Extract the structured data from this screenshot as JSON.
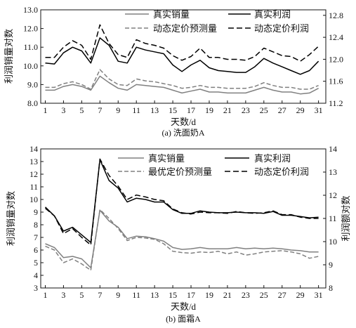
{
  "chart_data": [
    {
      "type": "line",
      "caption": "(a) 洗面奶A",
      "xlabel": "天数/d",
      "ylabel_left": "利润销量对数",
      "ylabel_right": "",
      "x_ticks": [
        1,
        3,
        5,
        7,
        9,
        11,
        13,
        15,
        17,
        19,
        21,
        23,
        25,
        27,
        29,
        31
      ],
      "x": [
        1,
        2,
        3,
        4,
        5,
        6,
        7,
        8,
        9,
        10,
        11,
        12,
        13,
        14,
        15,
        16,
        17,
        18,
        19,
        20,
        21,
        22,
        23,
        24,
        25,
        26,
        27,
        28,
        29,
        30,
        31
      ],
      "xlim": [
        0.5,
        31.8
      ],
      "ylim_left": [
        8.0,
        13.0
      ],
      "yticks_left": [
        "8.0",
        "9.0",
        "10.0",
        "11.0",
        "12.0",
        "13.0"
      ],
      "ylim_right": [
        11.2,
        12.9
      ],
      "yticks_right": [
        "11.2",
        "11.6",
        "12.0",
        "12.4",
        "12.8"
      ],
      "legend": {
        "true_sales": "真实销量",
        "true_profit": "真实利润",
        "pred_sales": "动态定价预测量",
        "pred_profit": "动态定价利润"
      },
      "series": [
        {
          "name": "真实销量",
          "axis": "left",
          "color": "#808080",
          "dash": "solid",
          "values": [
            8.7,
            8.7,
            8.9,
            9.0,
            8.9,
            8.7,
            9.45,
            9.1,
            8.8,
            8.7,
            9.0,
            8.95,
            8.9,
            8.85,
            8.7,
            8.55,
            8.65,
            8.75,
            8.6,
            8.6,
            8.55,
            8.55,
            8.55,
            8.7,
            8.85,
            8.7,
            8.6,
            8.6,
            8.5,
            8.55,
            8.8
          ]
        },
        {
          "name": "真实利润",
          "axis": "left",
          "color": "#000000",
          "dash": "solid",
          "values": [
            10.15,
            10.1,
            10.7,
            11.0,
            10.8,
            10.15,
            11.5,
            11.1,
            10.25,
            10.15,
            11.0,
            10.85,
            10.75,
            10.65,
            10.05,
            9.7,
            10.05,
            10.3,
            9.9,
            9.75,
            9.7,
            9.65,
            9.65,
            9.95,
            10.4,
            10.15,
            9.95,
            9.75,
            9.55,
            9.75,
            10.25
          ]
        },
        {
          "name": "动态定价预测量",
          "axis": "left",
          "color": "#808080",
          "dash": "dashed",
          "values": [
            8.85,
            8.85,
            9.05,
            9.15,
            9.0,
            8.75,
            9.8,
            9.3,
            9.0,
            8.95,
            9.3,
            9.2,
            9.15,
            9.05,
            8.95,
            8.8,
            8.85,
            8.95,
            8.85,
            8.85,
            8.8,
            8.8,
            8.8,
            8.9,
            9.1,
            8.95,
            8.85,
            8.85,
            8.75,
            8.75,
            8.95
          ]
        },
        {
          "name": "动态定价利润",
          "axis": "left",
          "color": "#000000",
          "dash": "dashed",
          "values": [
            10.45,
            10.45,
            11.0,
            11.35,
            11.1,
            10.35,
            12.2,
            11.2,
            10.6,
            10.45,
            11.4,
            11.2,
            11.1,
            10.95,
            10.55,
            10.3,
            10.5,
            10.95,
            10.45,
            10.45,
            10.35,
            10.35,
            10.3,
            10.5,
            10.95,
            10.75,
            10.55,
            10.5,
            10.25,
            10.6,
            11.05
          ]
        }
      ]
    },
    {
      "type": "line",
      "caption": "(b) 面霜A",
      "xlabel": "天数/d",
      "ylabel_left": "利润销量对数",
      "ylabel_right": "利润额对数",
      "x_ticks": [
        1,
        3,
        5,
        7,
        9,
        11,
        13,
        15,
        17,
        19,
        21,
        23,
        25,
        27,
        29,
        31
      ],
      "x": [
        1,
        2,
        3,
        4,
        5,
        6,
        7,
        8,
        9,
        10,
        11,
        12,
        13,
        14,
        15,
        16,
        17,
        18,
        19,
        20,
        21,
        22,
        23,
        24,
        25,
        26,
        27,
        28,
        29,
        30,
        31
      ],
      "xlim": [
        0.5,
        31.8
      ],
      "ylim_left": [
        3,
        14
      ],
      "yticks_left": [
        "3",
        "4",
        "5",
        "6",
        "7",
        "8",
        "9",
        "10",
        "11",
        "12",
        "13",
        "14"
      ],
      "ylim_right": [
        8,
        14
      ],
      "yticks_right": [
        "8",
        "9",
        "10",
        "11",
        "12",
        "13",
        "14"
      ],
      "legend": {
        "true_sales": "真实销量",
        "true_profit": "真实利润",
        "pred_sales": "最优定价预测量",
        "pred_profit": "动态定价利润"
      },
      "series": [
        {
          "name": "真实销量",
          "axis": "left",
          "color": "#808080",
          "dash": "solid",
          "values": [
            6.5,
            6.2,
            5.4,
            5.5,
            5.3,
            4.6,
            9.15,
            8.3,
            7.8,
            6.9,
            7.1,
            7.05,
            6.9,
            6.7,
            6.2,
            6.05,
            6.1,
            6.2,
            6.1,
            6.1,
            6.1,
            6.2,
            6.1,
            6.15,
            6.1,
            6.15,
            6.1,
            6.0,
            5.95,
            5.85,
            5.85
          ]
        },
        {
          "name": "真实利润",
          "axis": "left",
          "color": "#000000",
          "dash": "solid",
          "values": [
            9.4,
            8.7,
            7.5,
            7.8,
            7.2,
            6.6,
            13.15,
            11.5,
            10.9,
            9.8,
            10.1,
            10.0,
            9.8,
            9.8,
            9.2,
            8.9,
            8.9,
            9.1,
            9.0,
            8.95,
            8.95,
            9.0,
            8.95,
            8.95,
            8.9,
            9.05,
            8.75,
            8.75,
            8.65,
            8.55,
            8.6
          ]
        },
        {
          "name": "最优定价预测量",
          "axis": "left",
          "color": "#808080",
          "dash": "dashed",
          "values": [
            6.3,
            6.0,
            5.0,
            5.3,
            4.9,
            4.4,
            9.2,
            8.5,
            7.7,
            6.75,
            7.0,
            6.95,
            6.85,
            6.5,
            5.9,
            5.8,
            5.75,
            5.85,
            5.8,
            5.9,
            5.7,
            5.85,
            5.6,
            5.7,
            5.85,
            5.9,
            5.95,
            5.85,
            5.7,
            5.35,
            5.5
          ]
        },
        {
          "name": "动态定价利润",
          "axis": "left",
          "color": "#000000",
          "dash": "dashed",
          "values": [
            9.3,
            8.7,
            7.3,
            7.7,
            7.0,
            6.4,
            13.2,
            11.9,
            11.05,
            10.0,
            10.35,
            10.2,
            10.0,
            9.9,
            9.25,
            8.95,
            8.85,
            9.0,
            8.95,
            8.95,
            8.9,
            9.05,
            8.95,
            8.9,
            8.95,
            9.1,
            8.8,
            8.8,
            8.6,
            8.5,
            8.5
          ]
        }
      ]
    }
  ]
}
